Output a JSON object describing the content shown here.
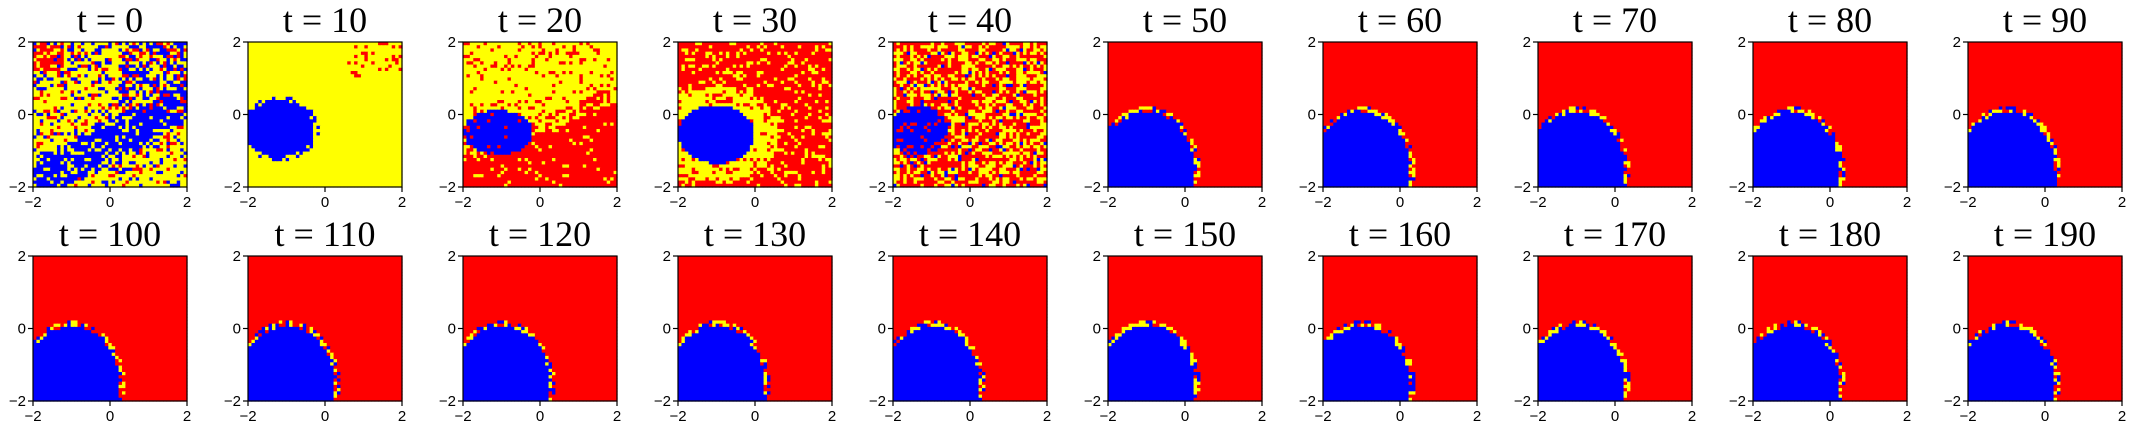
{
  "chart_data": {
    "type": "heatmap",
    "description_colors": {
      "state_a": "#ff0000",
      "state_b": "#0000ff",
      "state_c": "#ffff00"
    },
    "grid_cells": 45,
    "xlim": [
      -2,
      2
    ],
    "ylim": [
      -2,
      2
    ],
    "xticks": [
      "−2",
      "0",
      "2"
    ],
    "yticks": [
      "2",
      "0",
      "−2"
    ],
    "layout_rows": 2,
    "layout_cols": 10,
    "panels": [
      {
        "title": "t = 0",
        "t": 0,
        "phase": "noise_blue_diag"
      },
      {
        "title": "t = 10",
        "t": 10,
        "phase": "yellow_bg"
      },
      {
        "title": "t = 20",
        "t": 20,
        "phase": "red_yellow_split"
      },
      {
        "title": "t = 30",
        "t": 30,
        "phase": "yellow_band"
      },
      {
        "title": "t = 40",
        "t": 40,
        "phase": "noisy_red"
      },
      {
        "title": "t = 50",
        "t": 50,
        "phase": "settled"
      },
      {
        "title": "t = 60",
        "t": 60,
        "phase": "settled"
      },
      {
        "title": "t = 70",
        "t": 70,
        "phase": "settled"
      },
      {
        "title": "t = 80",
        "t": 80,
        "phase": "settled"
      },
      {
        "title": "t = 90",
        "t": 90,
        "phase": "settled"
      },
      {
        "title": "t = 100",
        "t": 100,
        "phase": "settled"
      },
      {
        "title": "t = 110",
        "t": 110,
        "phase": "settled"
      },
      {
        "title": "t = 120",
        "t": 120,
        "phase": "settled"
      },
      {
        "title": "t = 130",
        "t": 130,
        "phase": "settled"
      },
      {
        "title": "t = 140",
        "t": 140,
        "phase": "settled"
      },
      {
        "title": "t = 150",
        "t": 150,
        "phase": "settled"
      },
      {
        "title": "t = 160",
        "t": 160,
        "phase": "settled"
      },
      {
        "title": "t = 170",
        "t": 170,
        "phase": "settled"
      },
      {
        "title": "t = 180",
        "t": 180,
        "phase": "settled"
      },
      {
        "title": "t = 190",
        "t": 190,
        "phase": "settled"
      }
    ]
  }
}
